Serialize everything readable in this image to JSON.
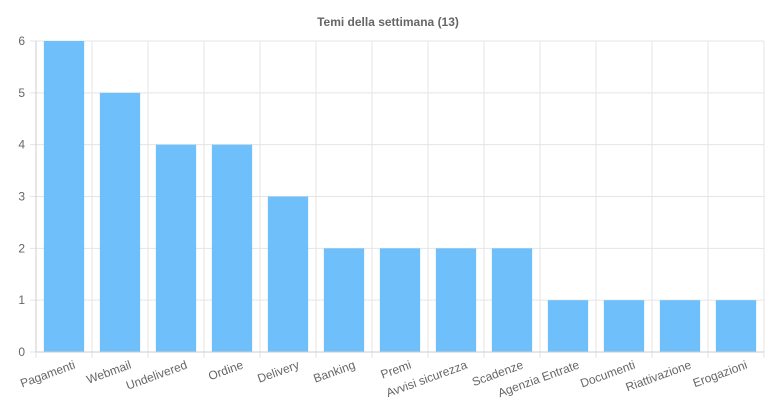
{
  "chart_data": {
    "type": "bar",
    "title": "Temi della settimana (13)",
    "categories": [
      "Pagamenti",
      "Webmail",
      "Undelivered",
      "Ordine",
      "Delivery",
      "Banking",
      "Premi",
      "Avvisi sicurezza",
      "Scadenze",
      "Agenzia Entrate",
      "Documenti",
      "Riattivazione",
      "Erogazioni"
    ],
    "series": [
      {
        "values": [
          6,
          5,
          4,
          4,
          3,
          2,
          2,
          2,
          2,
          1,
          1,
          1,
          1
        ]
      }
    ],
    "ylim": [
      0,
      6
    ],
    "yticks": [
      "0",
      "1",
      "2",
      "3",
      "4",
      "5",
      "6"
    ],
    "grid": true,
    "legend": "none",
    "bar_color": "#6fbffa"
  }
}
